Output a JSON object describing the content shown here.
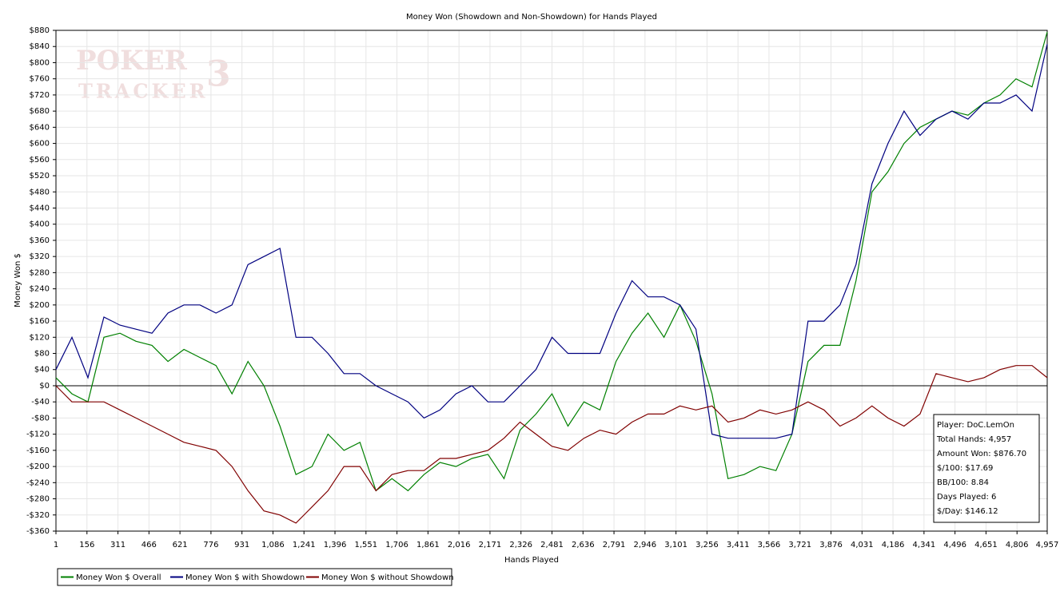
{
  "chart_data": {
    "type": "line",
    "title": "Money Won (Showdown and Non-Showdown) for Hands Played",
    "x_label": "Hands Played",
    "y_label": "Money Won $",
    "watermark": [
      "POKER",
      "TRACKER",
      "3"
    ],
    "grid": true,
    "x": [
      1,
      81,
      161,
      241,
      321,
      401,
      481,
      561,
      641,
      721,
      801,
      881,
      961,
      1041,
      1121,
      1201,
      1281,
      1361,
      1441,
      1521,
      1601,
      1681,
      1761,
      1841,
      1921,
      2001,
      2081,
      2161,
      2241,
      2321,
      2401,
      2481,
      2561,
      2641,
      2721,
      2801,
      2881,
      2961,
      3041,
      3121,
      3201,
      3281,
      3361,
      3441,
      3521,
      3601,
      3681,
      3761,
      3841,
      3921,
      4001,
      4081,
      4161,
      4241,
      4321,
      4401,
      4481,
      4561,
      4641,
      4721,
      4801,
      4881,
      4957
    ],
    "series": [
      {
        "name": "Money Won $ Overall",
        "color": "#008000",
        "values": [
          20,
          -20,
          -40,
          120,
          130,
          110,
          100,
          60,
          90,
          70,
          50,
          -20,
          60,
          0,
          -100,
          -220,
          -200,
          -120,
          -160,
          -140,
          -260,
          -230,
          -260,
          -220,
          -190,
          -200,
          -180,
          -170,
          -230,
          -110,
          -70,
          -20,
          -100,
          -40,
          -60,
          60,
          130,
          180,
          120,
          200,
          110,
          -20,
          -230,
          -220,
          -200,
          -210,
          -120,
          60,
          100,
          100,
          260,
          480,
          530,
          600,
          640,
          660,
          680,
          670,
          700,
          720,
          760,
          740,
          876
        ]
      },
      {
        "name": "Money Won $ with Showdown",
        "color": "#000080",
        "values": [
          40,
          120,
          20,
          170,
          150,
          140,
          130,
          180,
          200,
          200,
          180,
          200,
          300,
          320,
          340,
          120,
          120,
          80,
          30,
          30,
          0,
          -20,
          -40,
          -80,
          -60,
          -20,
          0,
          -40,
          -40,
          0,
          40,
          120,
          80,
          80,
          80,
          180,
          260,
          220,
          220,
          200,
          140,
          -120,
          -130,
          -130,
          -130,
          -130,
          -120,
          160,
          160,
          200,
          300,
          500,
          600,
          680,
          620,
          660,
          680,
          660,
          700,
          700,
          720,
          680,
          846
        ]
      },
      {
        "name": "Money Won $ without Showdown",
        "color": "#800000",
        "values": [
          0,
          -40,
          -40,
          -40,
          -60,
          -80,
          -100,
          -120,
          -140,
          -150,
          -160,
          -200,
          -260,
          -310,
          -320,
          -340,
          -300,
          -260,
          -200,
          -200,
          -260,
          -220,
          -210,
          -210,
          -180,
          -180,
          -170,
          -160,
          -130,
          -90,
          -120,
          -150,
          -160,
          -130,
          -110,
          -120,
          -90,
          -70,
          -70,
          -50,
          -60,
          -50,
          -90,
          -80,
          -60,
          -70,
          -60,
          -40,
          -60,
          -100,
          -80,
          -50,
          -80,
          -100,
          -70,
          30,
          20,
          10,
          20,
          40,
          50,
          50,
          20
        ]
      }
    ],
    "xlim": [
      1,
      4957
    ],
    "xticks": [
      1,
      156,
      311,
      466,
      621,
      776,
      931,
      {
        "value": 1086,
        "label": "1,086"
      },
      {
        "value": 1241,
        "label": "1,241"
      },
      {
        "value": 1396,
        "label": "1,396"
      },
      {
        "value": 1551,
        "label": "1,551"
      },
      {
        "value": 1706,
        "label": "1,706"
      },
      {
        "value": 1861,
        "label": "1,861"
      },
      {
        "value": 2016,
        "label": "2,016"
      },
      {
        "value": 2171,
        "label": "2,171"
      },
      {
        "value": 2326,
        "label": "2,326"
      },
      {
        "value": 2481,
        "label": "2,481"
      },
      {
        "value": 2636,
        "label": "2,636"
      },
      {
        "value": 2791,
        "label": "2,791"
      },
      {
        "value": 2946,
        "label": "2,946"
      },
      {
        "value": 3101,
        "label": "3,101"
      },
      {
        "value": 3256,
        "label": "3,256"
      },
      {
        "value": 3411,
        "label": "3,411"
      },
      {
        "value": 3566,
        "label": "3,566"
      },
      {
        "value": 3721,
        "label": "3,721"
      },
      {
        "value": 3876,
        "label": "3,876"
      },
      {
        "value": 4031,
        "label": "4,031"
      },
      {
        "value": 4186,
        "label": "4,186"
      },
      {
        "value": 4341,
        "label": "4,341"
      },
      {
        "value": 4496,
        "label": "4,496"
      },
      {
        "value": 4651,
        "label": "4,651"
      },
      {
        "value": 4806,
        "label": "4,806"
      },
      {
        "value": 4957,
        "label": "4,957"
      }
    ],
    "ylim": [
      -360,
      880
    ],
    "yticks": [
      {
        "value": 880,
        "label": "$880"
      },
      {
        "value": 840,
        "label": "$840"
      },
      {
        "value": 800,
        "label": "$800"
      },
      {
        "value": 760,
        "label": "$760"
      },
      {
        "value": 720,
        "label": "$720"
      },
      {
        "value": 680,
        "label": "$680"
      },
      {
        "value": 640,
        "label": "$640"
      },
      {
        "value": 600,
        "label": "$600"
      },
      {
        "value": 560,
        "label": "$560"
      },
      {
        "value": 520,
        "label": "$520"
      },
      {
        "value": 480,
        "label": "$480"
      },
      {
        "value": 440,
        "label": "$440"
      },
      {
        "value": 400,
        "label": "$400"
      },
      {
        "value": 360,
        "label": "$360"
      },
      {
        "value": 320,
        "label": "$320"
      },
      {
        "value": 280,
        "label": "$280"
      },
      {
        "value": 240,
        "label": "$240"
      },
      {
        "value": 200,
        "label": "$200"
      },
      {
        "value": 160,
        "label": "$160"
      },
      {
        "value": 120,
        "label": "$120"
      },
      {
        "value": 80,
        "label": "$80"
      },
      {
        "value": 40,
        "label": "$40"
      },
      {
        "value": 0,
        "label": "$0"
      },
      {
        "value": -40,
        "label": "-$40"
      },
      {
        "value": -80,
        "label": "-$80"
      },
      {
        "value": -120,
        "label": "-$120"
      },
      {
        "value": -160,
        "label": "-$160"
      },
      {
        "value": -200,
        "label": "-$200"
      },
      {
        "value": -240,
        "label": "-$240"
      },
      {
        "value": -280,
        "label": "-$280"
      },
      {
        "value": -320,
        "label": "-$320"
      },
      {
        "value": -360,
        "label": "-$360"
      }
    ],
    "stats": [
      "Player: DoC.LemOn",
      "Total Hands: 4,957",
      "Amount Won: $876.70",
      "$/100: $17.69",
      "BB/100: 8.84",
      "Days Played: 6",
      "$/Day: $146.12"
    ]
  }
}
